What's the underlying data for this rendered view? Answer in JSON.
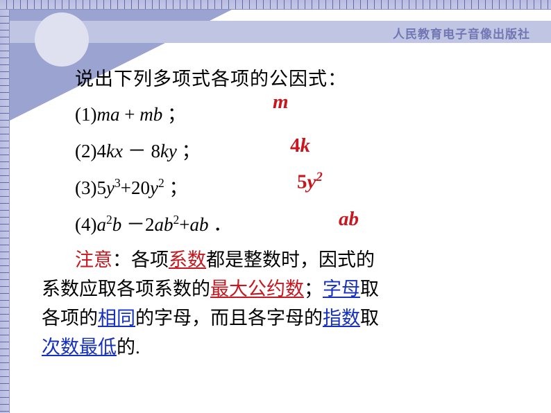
{
  "publisher": "人民教育电子音像出版社",
  "question": "说出下列多项式各项的公因式：",
  "items": [
    {
      "label": "(1)",
      "expr_html": "<span class='math-i'>ma</span> + <span class='math-i'>mb</span> <span class='chinese'>；</span>",
      "answer_html": "m"
    },
    {
      "label": "(2)",
      "expr_html": "4<span class='math-i'>kx</span> － 8<span class='math-i'>ky</span> <span class='chinese'>；</span>",
      "answer_html": "<span class='num'>4</span>k"
    },
    {
      "label": "(3)",
      "expr_html": "5<span class='math-i'>y</span><sup>3</sup>+20<span class='math-i'>y</span><sup>2</sup> <span class='chinese'>；</span>",
      "answer_html": "<span class='num'>5</span>y<span class='sup-i'>2</span>"
    },
    {
      "label": "(4)",
      "expr_html": "<span class='math-i'>a</span><sup>2</sup><span class='math-i'>b</span> －2<span class='math-i'>ab</span><sup>2</sup>+<span class='math-i'>ab</span> <span class='chinese'>．</span>",
      "answer_html": "ab"
    }
  ],
  "note": {
    "lead": "注意",
    "t1": "：各项",
    "k1": "系数",
    "t2": "都是整数时，因式的",
    "t3": "系数应取各项系数的",
    "k2": "最大公约数",
    "t4": "；",
    "k3": "字母",
    "t5": "取",
    "t6": "各项的",
    "k4": "相同",
    "t7": "的字母，而且各字母的",
    "k5": "指数",
    "t8": "取",
    "k6": "次数最低",
    "t9": "的."
  },
  "colors": {
    "red": "#c8171f",
    "blue": "#1530c0",
    "band": "#c0c5e3",
    "triangle": "#9ba3d0",
    "circle": "#dfe1f0",
    "ruler": "#b8bce0"
  }
}
